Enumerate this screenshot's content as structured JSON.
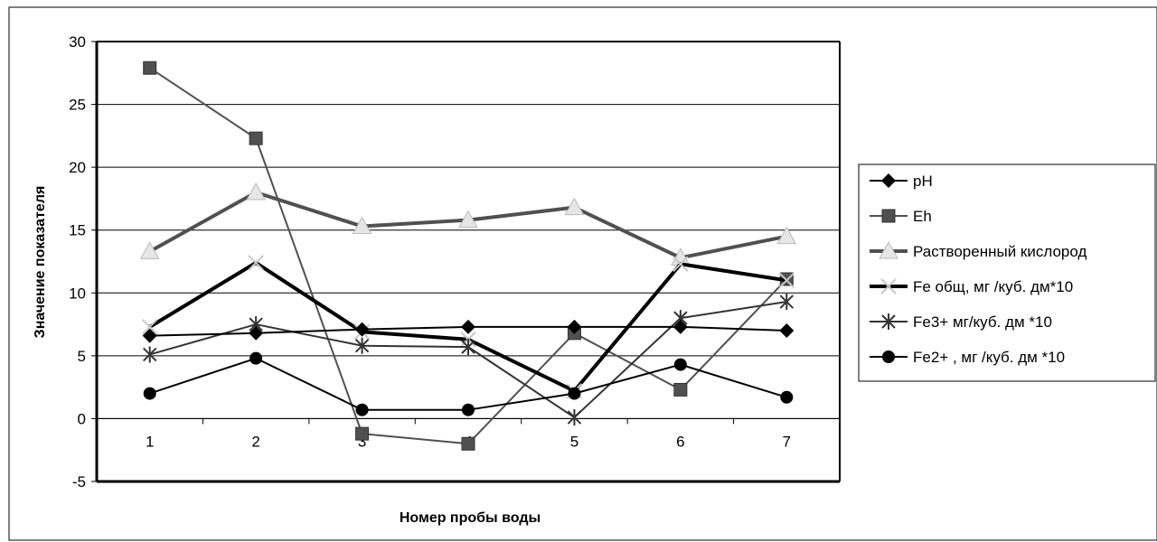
{
  "chart_data": {
    "type": "line",
    "xlabel": "Номер пробы воды",
    "ylabel": "Значение показателя",
    "categories": [
      "1",
      "2",
      "3",
      "4",
      "5",
      "6",
      "7"
    ],
    "ylim": [
      -5,
      30
    ],
    "yticks": [
      -5,
      0,
      5,
      10,
      15,
      20,
      25,
      30
    ],
    "grid": true,
    "legend_position": "right",
    "series": [
      {
        "name": "pH",
        "values": [
          6.6,
          6.8,
          7.1,
          7.3,
          7.3,
          7.3,
          7.0
        ],
        "color": "#000000",
        "marker": "diamond",
        "markerColor": "#000000",
        "width": 2
      },
      {
        "name": "Eh",
        "values": [
          27.9,
          22.3,
          -1.2,
          -2.0,
          6.8,
          2.3,
          11.1
        ],
        "color": "#505050",
        "marker": "square",
        "markerColor": "#505050",
        "width": 2
      },
      {
        "name": "Растворенный кислород",
        "values": [
          13.3,
          18.0,
          15.3,
          15.8,
          16.8,
          12.8,
          14.5
        ],
        "color": "#505050",
        "marker": "triangle",
        "markerColor": "#e6e6e6",
        "width": 4
      },
      {
        "name": "Fe общ, мг /куб. дм*10",
        "values": [
          7.3,
          12.4,
          6.9,
          6.3,
          2.2,
          12.3,
          11.0
        ],
        "color": "#000000",
        "marker": "x",
        "markerColor": "#c8c8c8",
        "width": 4
      },
      {
        "name": "Fe3+ мг/куб. дм *10",
        "values": [
          5.1,
          7.5,
          5.8,
          5.7,
          0.1,
          8.0,
          9.3
        ],
        "color": "#333333",
        "marker": "star",
        "markerColor": "#333333",
        "width": 2
      },
      {
        "name": "Fe2+ , мг /куб. дм *10",
        "values": [
          2.0,
          4.8,
          0.7,
          0.7,
          2.0,
          4.3,
          1.7
        ],
        "color": "#000000",
        "marker": "circle",
        "markerColor": "#000000",
        "width": 2
      }
    ]
  }
}
